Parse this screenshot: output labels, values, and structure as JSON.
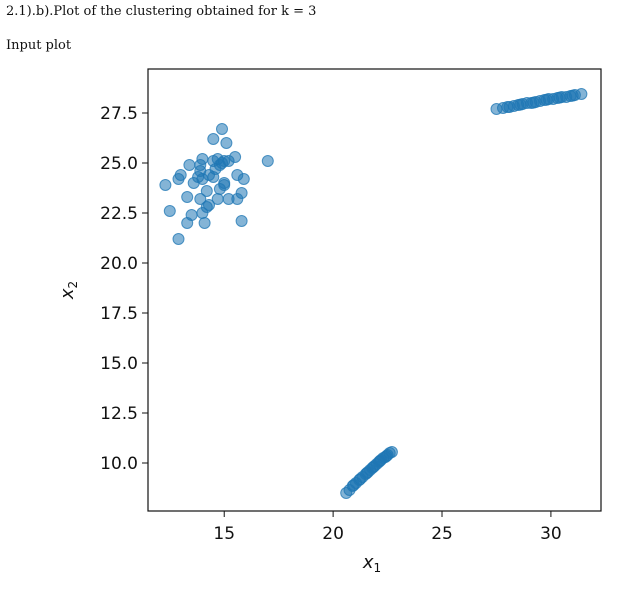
{
  "header": {
    "title": "2.1).b).Plot of the clustering obtained for k = 3",
    "subtitle": "Input plot"
  },
  "chart_data": {
    "type": "scatter",
    "title": "",
    "xlabel": "x",
    "xlabel_sub": "1",
    "ylabel": "x",
    "ylabel_sub": "2",
    "xlim": [
      11.5,
      32.3
    ],
    "ylim": [
      7.6,
      29.7
    ],
    "xticks": [
      15,
      20,
      25,
      30
    ],
    "xtick_labels": [
      "15",
      "20",
      "25",
      "30"
    ],
    "yticks": [
      10.0,
      12.5,
      15.0,
      17.5,
      20.0,
      22.5,
      25.0,
      27.5
    ],
    "ytick_labels": [
      "10.0",
      "12.5",
      "15.0",
      "17.5",
      "20.0",
      "22.5",
      "25.0",
      "27.5"
    ],
    "grid": false,
    "point_color": "#1f77b4",
    "series": [
      {
        "points": [
          [
            12.3,
            23.9
          ],
          [
            12.5,
            22.6
          ],
          [
            12.9,
            24.2
          ],
          [
            13.0,
            24.4
          ],
          [
            12.9,
            21.2
          ],
          [
            13.3,
            23.3
          ],
          [
            13.3,
            22.0
          ],
          [
            13.5,
            22.4
          ],
          [
            13.4,
            24.9
          ],
          [
            13.6,
            24.0
          ],
          [
            13.8,
            24.3
          ],
          [
            13.9,
            24.6
          ],
          [
            13.9,
            24.9
          ],
          [
            14.0,
            25.2
          ],
          [
            14.0,
            24.2
          ],
          [
            13.9,
            23.2
          ],
          [
            14.0,
            22.5
          ],
          [
            14.1,
            22.0
          ],
          [
            14.2,
            23.6
          ],
          [
            14.3,
            22.9
          ],
          [
            14.3,
            24.4
          ],
          [
            14.5,
            26.2
          ],
          [
            14.5,
            24.3
          ],
          [
            14.5,
            25.1
          ],
          [
            14.6,
            24.7
          ],
          [
            14.7,
            25.2
          ],
          [
            14.7,
            23.2
          ],
          [
            14.8,
            24.9
          ],
          [
            14.8,
            23.7
          ],
          [
            14.9,
            25.0
          ],
          [
            14.9,
            26.7
          ],
          [
            15.0,
            23.9
          ],
          [
            15.0,
            24.0
          ],
          [
            15.0,
            25.1
          ],
          [
            15.1,
            26.0
          ],
          [
            15.2,
            23.2
          ],
          [
            15.2,
            25.1
          ],
          [
            15.5,
            25.3
          ],
          [
            15.6,
            24.4
          ],
          [
            15.6,
            23.2
          ],
          [
            15.8,
            23.5
          ],
          [
            15.8,
            22.1
          ],
          [
            15.9,
            24.2
          ],
          [
            17.0,
            25.1
          ],
          [
            14.2,
            22.8
          ]
        ]
      },
      {
        "points": [
          [
            20.6,
            8.5
          ],
          [
            20.75,
            8.65
          ],
          [
            20.9,
            8.85
          ],
          [
            21.05,
            9.0
          ],
          [
            21.2,
            9.15
          ],
          [
            21.35,
            9.3
          ],
          [
            21.5,
            9.45
          ],
          [
            21.6,
            9.55
          ],
          [
            21.7,
            9.65
          ],
          [
            21.8,
            9.75
          ],
          [
            21.9,
            9.85
          ],
          [
            22.0,
            9.95
          ],
          [
            22.1,
            10.05
          ],
          [
            22.2,
            10.15
          ],
          [
            22.3,
            10.25
          ],
          [
            22.4,
            10.3
          ],
          [
            22.5,
            10.4
          ],
          [
            22.6,
            10.5
          ],
          [
            22.7,
            10.55
          ],
          [
            20.95,
            8.9
          ],
          [
            21.25,
            9.2
          ],
          [
            21.55,
            9.5
          ],
          [
            21.85,
            9.8
          ],
          [
            22.15,
            10.1
          ],
          [
            22.45,
            10.35
          ]
        ]
      },
      {
        "points": [
          [
            27.5,
            27.7
          ],
          [
            27.8,
            27.75
          ],
          [
            28.1,
            27.8
          ],
          [
            28.3,
            27.85
          ],
          [
            28.5,
            27.9
          ],
          [
            28.7,
            27.95
          ],
          [
            28.9,
            28.0
          ],
          [
            29.1,
            28.0
          ],
          [
            29.3,
            28.05
          ],
          [
            29.5,
            28.1
          ],
          [
            29.7,
            28.15
          ],
          [
            29.9,
            28.2
          ],
          [
            30.1,
            28.2
          ],
          [
            30.3,
            28.25
          ],
          [
            30.5,
            28.3
          ],
          [
            30.7,
            28.3
          ],
          [
            30.9,
            28.35
          ],
          [
            31.1,
            28.4
          ],
          [
            31.4,
            28.45
          ],
          [
            28.0,
            27.8
          ],
          [
            28.6,
            27.92
          ],
          [
            29.2,
            28.02
          ],
          [
            29.8,
            28.16
          ],
          [
            30.4,
            28.27
          ],
          [
            31.0,
            28.37
          ]
        ]
      }
    ]
  }
}
